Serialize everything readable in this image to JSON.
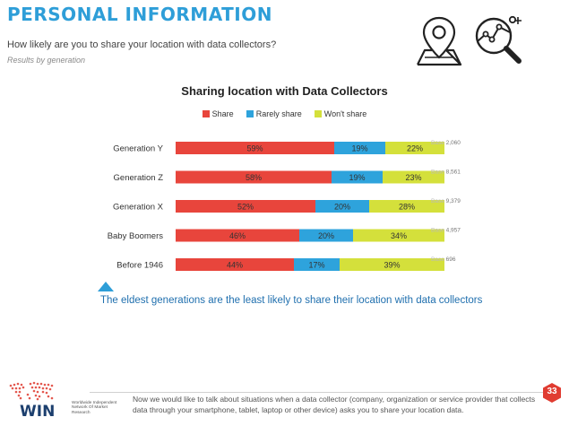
{
  "header": {
    "title": "PERSONAL INFORMATION",
    "subtitle": "How likely are you to share your location with data collectors?",
    "note": "Results by generation"
  },
  "icons": {
    "left": "location-map-icon",
    "right": "search-data-icon"
  },
  "colors": {
    "accent": "#2e9ed8",
    "share": "#e8453c",
    "rarely": "#2ea3dc",
    "wont": "#d4e03b",
    "badge": "#e03c31",
    "callout": "#1f6fae"
  },
  "chart_data": {
    "type": "bar",
    "orientation": "horizontal",
    "stacked": true,
    "title": "Sharing location with Data Collectors",
    "categories": [
      "Generation Y",
      "Generation Z",
      "Generation X",
      "Baby Boomers",
      "Before 1946"
    ],
    "series": [
      {
        "name": "Share",
        "values": [
          59,
          58,
          52,
          46,
          44
        ]
      },
      {
        "name": "Rarely share",
        "values": [
          19,
          19,
          20,
          20,
          17
        ]
      },
      {
        "name": "Won't share",
        "values": [
          22,
          23,
          28,
          34,
          39
        ]
      }
    ],
    "value_format": "%",
    "base_label": "Base",
    "bases": [
      "2,060",
      "8,561",
      "9,379",
      "4,957",
      "696"
    ],
    "legend_position": "top",
    "grid": false
  },
  "callout": "The eldest generations are the least likely to share their location with data collectors",
  "footnote": "Now we would like to talk about situations when a data collector (company, organization or service provider that collects data through your smartphone, tablet, laptop or other device) asks you to share your location data.",
  "page_number": "33",
  "logo": {
    "name": "WIN",
    "tagline": "Worldwide Independent Network Of Market Research"
  }
}
